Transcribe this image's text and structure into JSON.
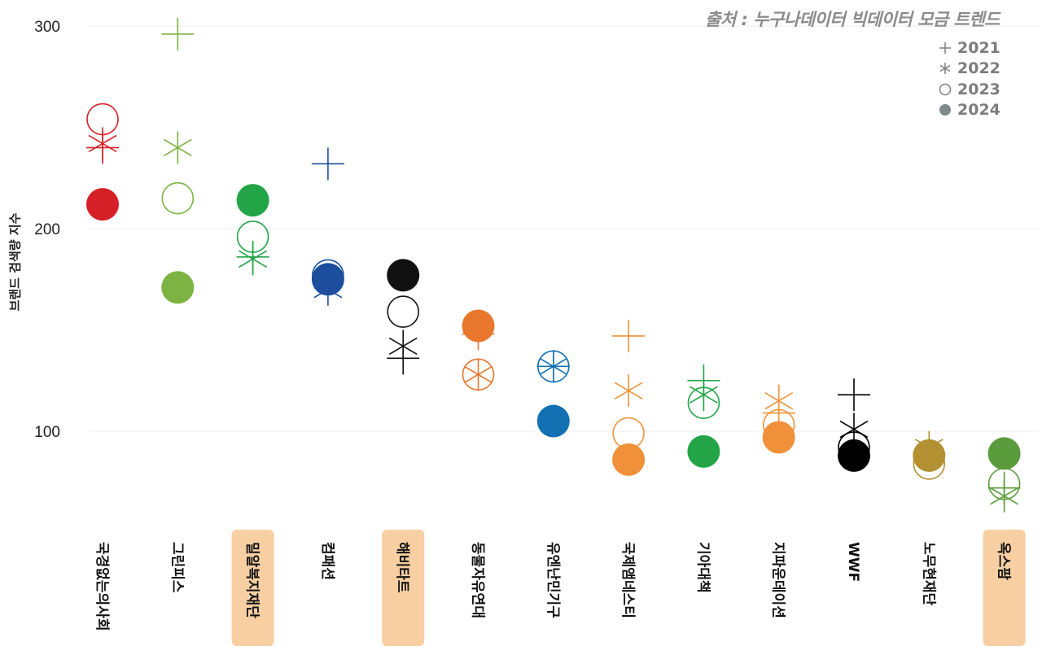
{
  "source": "출처 : 누구나데이터 빅데이터 모금 트렌드",
  "chart_data": {
    "type": "scatter",
    "title": "",
    "xlabel": "",
    "ylabel": "브랜드 검색량 지수",
    "ylim": [
      50,
      300
    ],
    "yticks": [
      100,
      200,
      300
    ],
    "legend_position": "top-right",
    "years": [
      {
        "label": "2021",
        "marker": "plus"
      },
      {
        "label": "2022",
        "marker": "asterisk"
      },
      {
        "label": "2023",
        "marker": "circle-open"
      },
      {
        "label": "2024",
        "marker": "circle-filled"
      }
    ],
    "categories": [
      {
        "name": "국경없는의사회",
        "color": "#d62027",
        "highlight": false,
        "values": [
          240,
          242,
          254,
          212
        ]
      },
      {
        "name": "그린피스",
        "color": "#7cb342",
        "highlight": false,
        "values": [
          296,
          240,
          215,
          171
        ]
      },
      {
        "name": "밀알복지재단",
        "color": "#22a447",
        "highlight": true,
        "values": [
          186,
          185,
          196,
          214
        ]
      },
      {
        "name": "컴패션",
        "color": "#1c4e9d",
        "highlight": false,
        "values": [
          232,
          170,
          177,
          175
        ]
      },
      {
        "name": "해비타트",
        "color": "#111111",
        "highlight": true,
        "values": [
          136,
          142,
          159,
          177
        ]
      },
      {
        "name": "동물자유연대",
        "color": "#e8762c",
        "highlight": false,
        "values": [
          148,
          128,
          128,
          152
        ]
      },
      {
        "name": "유엔난민기구",
        "color": "#1370b3",
        "highlight": false,
        "values": [
          132,
          132,
          132,
          105
        ]
      },
      {
        "name": "국제앰네스티",
        "color": "#f0913a",
        "highlight": false,
        "values": [
          147,
          120,
          99,
          86
        ]
      },
      {
        "name": "기아대책",
        "color": "#22a447",
        "highlight": false,
        "values": [
          125,
          118,
          114,
          90
        ]
      },
      {
        "name": "지파운데이션",
        "color": "#f0913a",
        "highlight": false,
        "values": [
          109,
          115,
          103,
          97
        ]
      },
      {
        "name": "WWF",
        "color": "#000000",
        "highlight": false,
        "values": [
          118,
          101,
          92,
          88
        ]
      },
      {
        "name": "노무현재단",
        "color": "#b39031",
        "highlight": false,
        "values": [
          89,
          92,
          84,
          88
        ]
      },
      {
        "name": "옥스팜",
        "color": "#5a9c3c",
        "highlight": true,
        "values": [
          72,
          68,
          74,
          89
        ]
      }
    ]
  },
  "colors": {
    "highlight_bg": "#f7cfa2",
    "grid": "#eeeeee",
    "legend_gray": "#7d7d7d"
  }
}
